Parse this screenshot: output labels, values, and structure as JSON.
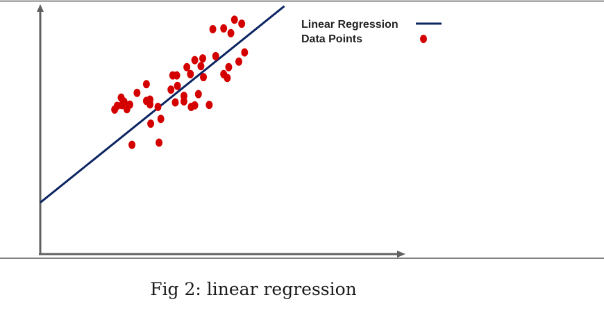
{
  "chart_data": {
    "type": "scatter",
    "title": "",
    "xlabel": "",
    "ylabel": "",
    "xlim": [
      0,
      10
    ],
    "ylim": [
      0,
      10
    ],
    "grid": false,
    "legend_position": "top-right",
    "colors": {
      "line": "#0b2462",
      "points": "#d40000",
      "axes": "#606060"
    },
    "legend": {
      "line_label": "Linear Regression",
      "points_label": "Data Points"
    },
    "regression_line": {
      "x": [
        0,
        6.76
      ],
      "y": [
        2.06,
        9.92
      ]
    },
    "points": [
      {
        "x": 2.06,
        "y": 5.78
      },
      {
        "x": 2.13,
        "y": 5.93
      },
      {
        "x": 2.24,
        "y": 6.26
      },
      {
        "x": 2.32,
        "y": 6.1
      },
      {
        "x": 2.26,
        "y": 5.96
      },
      {
        "x": 2.4,
        "y": 5.8
      },
      {
        "x": 2.48,
        "y": 5.98
      },
      {
        "x": 2.54,
        "y": 4.37
      },
      {
        "x": 2.68,
        "y": 6.45
      },
      {
        "x": 2.94,
        "y": 6.8
      },
      {
        "x": 2.94,
        "y": 6.13
      },
      {
        "x": 3.04,
        "y": 6.18
      },
      {
        "x": 3.04,
        "y": 5.99
      },
      {
        "x": 3.06,
        "y": 5.22
      },
      {
        "x": 3.26,
        "y": 5.89
      },
      {
        "x": 3.34,
        "y": 5.41
      },
      {
        "x": 3.29,
        "y": 4.46
      },
      {
        "x": 3.62,
        "y": 6.58
      },
      {
        "x": 3.67,
        "y": 7.15
      },
      {
        "x": 3.78,
        "y": 7.15
      },
      {
        "x": 3.8,
        "y": 6.73
      },
      {
        "x": 3.74,
        "y": 6.07
      },
      {
        "x": 3.98,
        "y": 6.11
      },
      {
        "x": 3.98,
        "y": 6.33
      },
      {
        "x": 4.06,
        "y": 7.48
      },
      {
        "x": 4.16,
        "y": 7.2
      },
      {
        "x": 4.18,
        "y": 5.89
      },
      {
        "x": 4.28,
        "y": 5.95
      },
      {
        "x": 4.28,
        "y": 7.76
      },
      {
        "x": 4.38,
        "y": 6.4
      },
      {
        "x": 4.45,
        "y": 7.52
      },
      {
        "x": 4.52,
        "y": 7.08
      },
      {
        "x": 4.5,
        "y": 7.83
      },
      {
        "x": 4.68,
        "y": 5.97
      },
      {
        "x": 4.78,
        "y": 9.0
      },
      {
        "x": 4.86,
        "y": 7.92
      },
      {
        "x": 5.08,
        "y": 9.03
      },
      {
        "x": 5.08,
        "y": 7.2
      },
      {
        "x": 5.18,
        "y": 7.05
      },
      {
        "x": 5.22,
        "y": 7.48
      },
      {
        "x": 5.28,
        "y": 8.84
      },
      {
        "x": 5.38,
        "y": 9.38
      },
      {
        "x": 5.5,
        "y": 7.7
      },
      {
        "x": 5.58,
        "y": 9.22
      },
      {
        "x": 5.66,
        "y": 8.07
      }
    ]
  },
  "caption": "Fig 2: linear regression"
}
